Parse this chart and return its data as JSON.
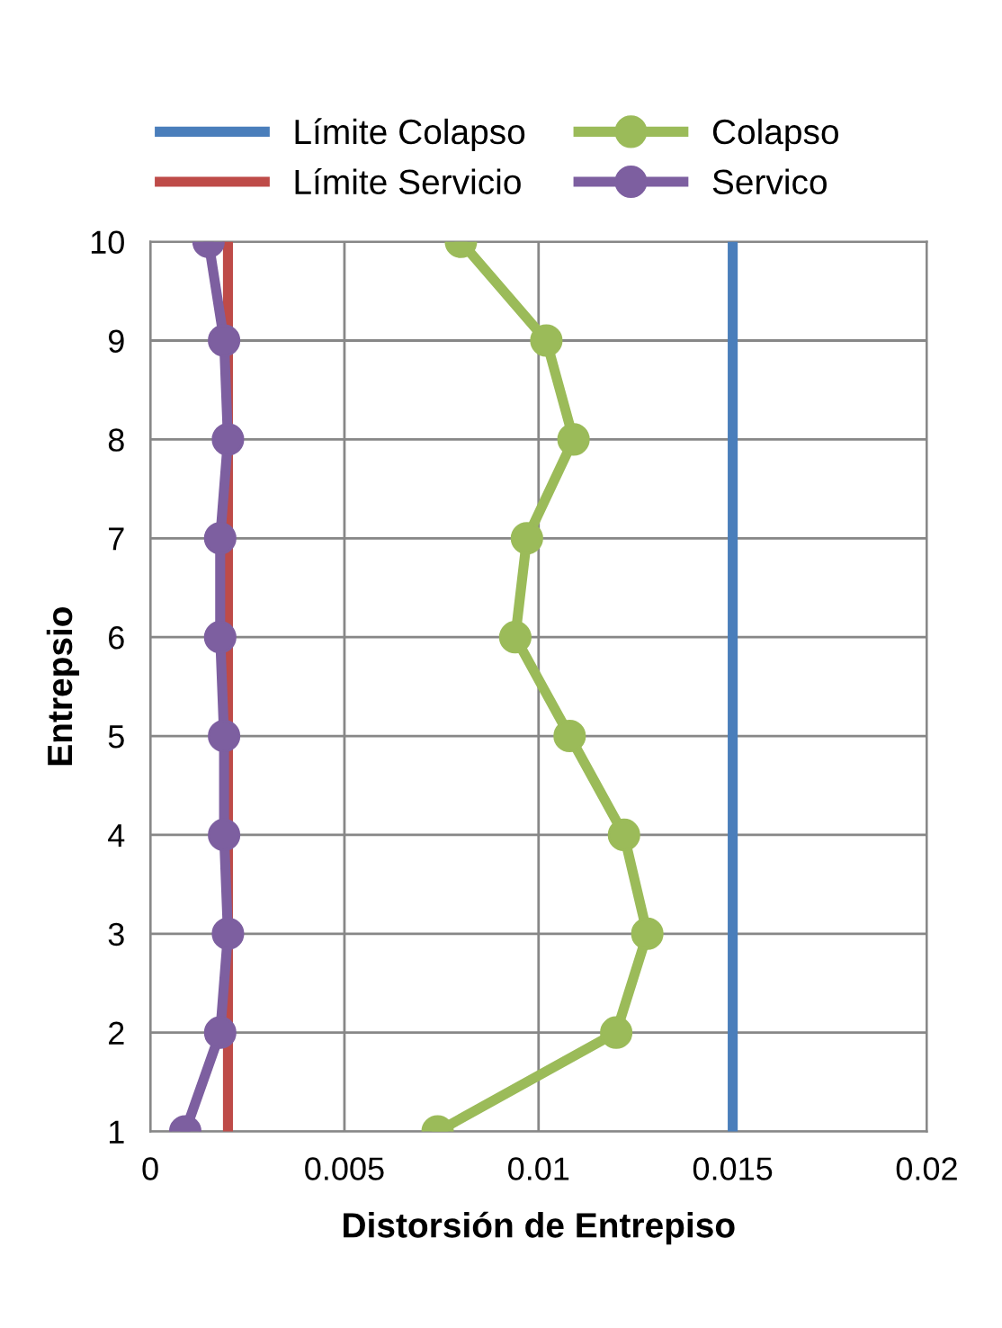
{
  "chart_data": {
    "type": "line",
    "xlabel": "Distorsión de Entrepiso",
    "ylabel": "Entrepsio",
    "xlim": [
      0,
      0.02
    ],
    "xticks": [
      0,
      0.005,
      0.01,
      0.015,
      0.02
    ],
    "ylim": [
      1,
      10
    ],
    "yticks": [
      1,
      2,
      3,
      4,
      5,
      6,
      7,
      8,
      9,
      10
    ],
    "grid": true,
    "legend": "top",
    "series": [
      {
        "name": "Límite Colapso",
        "color": "#4a7ebb",
        "marker": "none",
        "x": [
          0.015,
          0.015
        ],
        "values": [
          1,
          10
        ]
      },
      {
        "name": "Límite Servicio",
        "color": "#be4b48",
        "marker": "none",
        "x": [
          0.002,
          0.002
        ],
        "values": [
          1,
          10
        ]
      },
      {
        "name": "Colapso",
        "color": "#9bbb59",
        "marker": "circle",
        "x": [
          0.0074,
          0.012,
          0.0128,
          0.0122,
          0.0108,
          0.0094,
          0.0097,
          0.0109,
          0.0102,
          0.008
        ],
        "values": [
          1,
          2,
          3,
          4,
          5,
          6,
          7,
          8,
          9,
          10
        ]
      },
      {
        "name": "Servico",
        "color": "#7d5fa0",
        "marker": "circle",
        "x": [
          0.0009,
          0.0018,
          0.002,
          0.0019,
          0.0019,
          0.0018,
          0.0018,
          0.002,
          0.0019,
          0.0015
        ],
        "values": [
          1,
          2,
          3,
          4,
          5,
          6,
          7,
          8,
          9,
          10
        ]
      }
    ]
  }
}
